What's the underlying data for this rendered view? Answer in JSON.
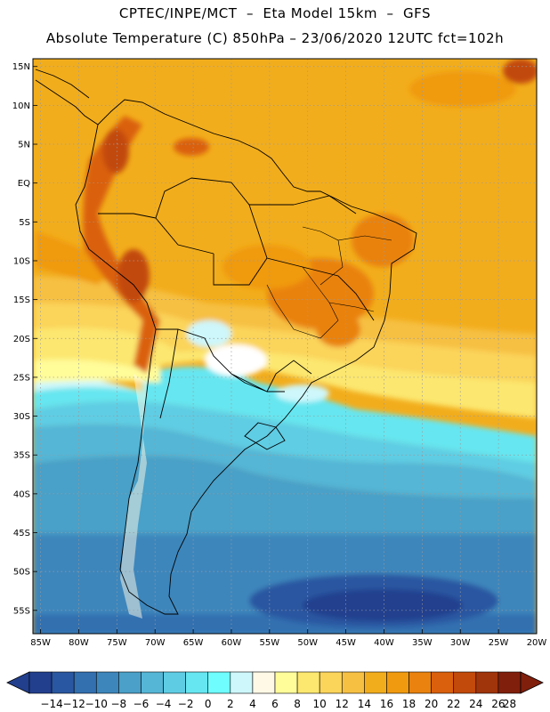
{
  "header": {
    "line1": "CPTEC/INPE/MCT  –  Eta Model 15km  –  GFS",
    "line2": "Absolute Temperature (C) 850hPa – 23/06/2020 12UTC fct=102h"
  },
  "map": {
    "lat_labels": [
      "15N",
      "10N",
      "5N",
      "EQ",
      "5S",
      "10S",
      "15S",
      "20S",
      "25S",
      "30S",
      "35S",
      "40S",
      "45S",
      "50S",
      "55S"
    ],
    "lon_labels": [
      "85W",
      "80W",
      "75W",
      "70W",
      "65W",
      "60W",
      "55W",
      "50W",
      "45W",
      "40W",
      "35W",
      "30W",
      "25W",
      "20W"
    ],
    "lat_values": [
      15,
      10,
      5,
      0,
      -5,
      -10,
      -15,
      -20,
      -25,
      -30,
      -35,
      -40,
      -45,
      -50,
      -55
    ],
    "lon_values": [
      -85,
      -80,
      -75,
      -70,
      -65,
      -60,
      -55,
      -50,
      -45,
      -40,
      -35,
      -30,
      -25,
      -20
    ],
    "lat_range": [
      -58,
      16
    ],
    "lon_range": [
      -86,
      -20
    ]
  },
  "colorbar": {
    "labels": [
      "-14",
      "-12",
      "-10",
      "-8",
      "-6",
      "-4",
      "-2",
      "0",
      "2",
      "4",
      "6",
      "8",
      "10",
      "12",
      "14",
      "16",
      "18",
      "20",
      "22",
      "24",
      "26",
      "28"
    ],
    "colors": [
      "#223f8e",
      "#2a57a1",
      "#3270b0",
      "#3d86bc",
      "#4aa0c8",
      "#55b6d6",
      "#5ecde4",
      "#66e6f0",
      "#6ffdfd",
      "#cdf7fb",
      "#fff9e6",
      "#fffc9a",
      "#fce76f",
      "#fbd45a",
      "#f6c043",
      "#f2ad1c",
      "#f09a0f",
      "#e9820f",
      "#da600d",
      "#c24a0a",
      "#a0340a",
      "#801f0c"
    ],
    "unit": "C"
  }
}
